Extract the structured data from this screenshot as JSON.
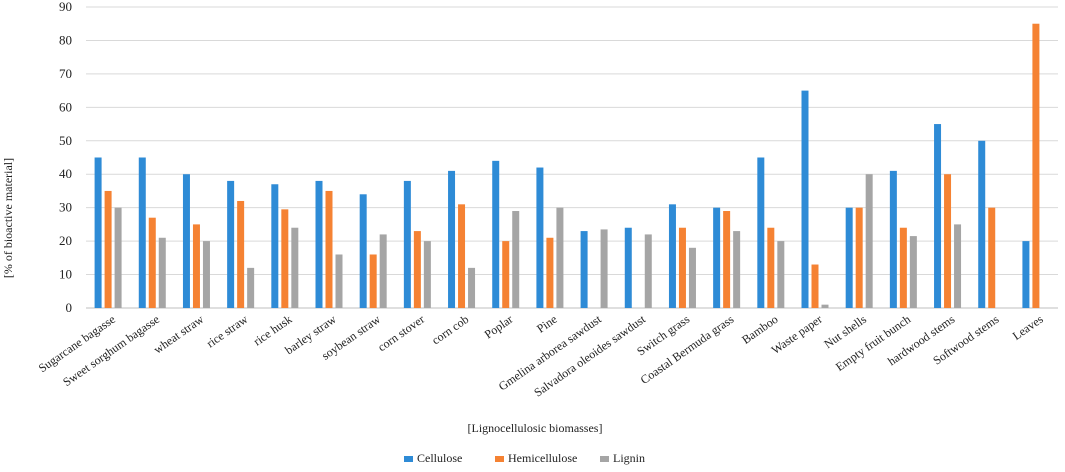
{
  "chart_data": {
    "type": "bar",
    "title": "",
    "xlabel": "[Lignocellulosic  biomasses]",
    "ylabel": "[% of bioactive material]",
    "ylim": [
      0,
      90
    ],
    "yticks": [
      0,
      10,
      20,
      30,
      40,
      50,
      60,
      70,
      80,
      90
    ],
    "grid": true,
    "legend_position": "bottom-center",
    "categories": [
      "Sugarcane bagasse",
      "Sweet sorghum bagasse",
      "wheat straw",
      "rice straw",
      "rice husk",
      "barley straw",
      "soybean straw",
      "corn stover",
      "corn cob",
      "Poplar",
      "Pine",
      "Gmelina arborea sawdust",
      "Salvadora oleoides sawdust",
      "Switch grass",
      "Coastal Bermuda grass",
      "Bamboo",
      "Waste paper",
      "Nut shells",
      "Empty fruit bunch",
      "hardwood stems",
      "Softwood stems",
      "Leaves"
    ],
    "series": [
      {
        "name": "Cellulose",
        "color": "#2E8BD6",
        "values": [
          45,
          45,
          40,
          38,
          37,
          38,
          34,
          38,
          41,
          44,
          42,
          23,
          24,
          31,
          30,
          45,
          65,
          30,
          41,
          55,
          50,
          20
        ]
      },
      {
        "name": "Hemicellulose",
        "color": "#F58233",
        "values": [
          35,
          27,
          25,
          32,
          29.5,
          35,
          16,
          23,
          31,
          20,
          21,
          0,
          0,
          24,
          29,
          24,
          13,
          30,
          24,
          40,
          30,
          85
        ]
      },
      {
        "name": "Lignin",
        "color": "#A5A5A5",
        "values": [
          30,
          21,
          20,
          12,
          24,
          16,
          22,
          20,
          12,
          29,
          30,
          23.5,
          22,
          18,
          23,
          20,
          1,
          40,
          21.5,
          25,
          0,
          0
        ]
      }
    ]
  }
}
